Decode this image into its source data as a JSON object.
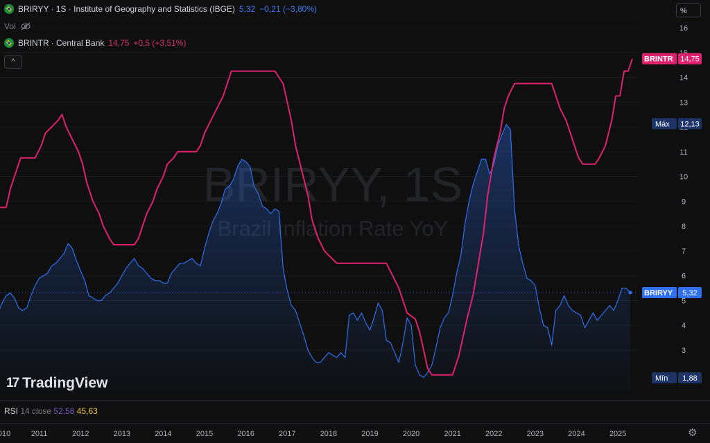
{
  "legend_main": {
    "symbol": "BRIRYY",
    "title": "· 1S · Institute of Geography and Statistics (IBGE)",
    "value": "5,32",
    "change": "−0,21 (−3,80%)"
  },
  "legend_vol": {
    "label": "Vol",
    "hidden_icon": "eye-off-icon"
  },
  "legend_second": {
    "symbol": "BRINTR",
    "source": "· Central Bank",
    "value": "14,75",
    "change": "+0,5 (+3,51%)"
  },
  "collapse_button": {
    "icon": "chevron-up-icon",
    "glyph": "^"
  },
  "scale_button": {
    "label": "%"
  },
  "watermark": {
    "symbol": "BRIRYY, 1S",
    "name": "Brazil Inflation Rate YoY"
  },
  "logo": {
    "text": "TradingView",
    "glyph": "17"
  },
  "rsi": {
    "label": "RSI",
    "params": "14 close",
    "value1": "52,58",
    "value2": "45,63"
  },
  "settings": {
    "icon": "gear-icon",
    "glyph": "⚙"
  },
  "colors": {
    "inflation": "#2f6ff0",
    "interest": "#e0216e",
    "background": "#0f0f0f",
    "max_min_badge": "#1e3466"
  },
  "chart_data": {
    "type": "line",
    "ylim": [
      1.7,
      16.5
    ],
    "y_ticks": [
      "16",
      "15",
      "14",
      "13",
      "12",
      "11",
      "10",
      "9",
      "8",
      "7",
      "6",
      "5",
      "4",
      "3"
    ],
    "x_ticks": [
      "010",
      "2011",
      "2012",
      "2013",
      "2014",
      "2015",
      "2016",
      "2017",
      "2018",
      "2019",
      "2020",
      "2021",
      "2022",
      "2023",
      "2024",
      "2025"
    ],
    "xlim": [
      2010.0,
      2025.6
    ],
    "series": [
      {
        "name": "BRIRYY",
        "color": "#2f6ff0",
        "points": [
          [
            2010.0,
            4.5
          ],
          [
            2010.1,
            4.9
          ],
          [
            2010.2,
            5.2
          ],
          [
            2010.3,
            5.3
          ],
          [
            2010.4,
            5.1
          ],
          [
            2010.5,
            4.7
          ],
          [
            2010.6,
            4.6
          ],
          [
            2010.7,
            4.7
          ],
          [
            2010.8,
            5.2
          ],
          [
            2010.9,
            5.6
          ],
          [
            2011.0,
            5.9
          ],
          [
            2011.1,
            6.0
          ],
          [
            2011.2,
            6.1
          ],
          [
            2011.3,
            6.4
          ],
          [
            2011.4,
            6.5
          ],
          [
            2011.5,
            6.7
          ],
          [
            2011.6,
            6.9
          ],
          [
            2011.7,
            7.3
          ],
          [
            2011.8,
            7.1
          ],
          [
            2011.9,
            6.6
          ],
          [
            2012.0,
            6.2
          ],
          [
            2012.1,
            5.8
          ],
          [
            2012.2,
            5.2
          ],
          [
            2012.3,
            5.1
          ],
          [
            2012.4,
            5.0
          ],
          [
            2012.5,
            5.0
          ],
          [
            2012.6,
            5.2
          ],
          [
            2012.7,
            5.3
          ],
          [
            2012.8,
            5.5
          ],
          [
            2012.9,
            5.7
          ],
          [
            2013.0,
            6.0
          ],
          [
            2013.1,
            6.3
          ],
          [
            2013.2,
            6.5
          ],
          [
            2013.3,
            6.7
          ],
          [
            2013.4,
            6.4
          ],
          [
            2013.5,
            6.3
          ],
          [
            2013.6,
            6.1
          ],
          [
            2013.7,
            5.9
          ],
          [
            2013.8,
            5.8
          ],
          [
            2013.9,
            5.8
          ],
          [
            2014.0,
            5.7
          ],
          [
            2014.1,
            5.7
          ],
          [
            2014.2,
            6.1
          ],
          [
            2014.3,
            6.3
          ],
          [
            2014.4,
            6.5
          ],
          [
            2014.5,
            6.5
          ],
          [
            2014.6,
            6.6
          ],
          [
            2014.7,
            6.7
          ],
          [
            2014.8,
            6.5
          ],
          [
            2014.9,
            6.4
          ],
          [
            2015.0,
            7.1
          ],
          [
            2015.1,
            7.7
          ],
          [
            2015.2,
            8.2
          ],
          [
            2015.3,
            8.5
          ],
          [
            2015.4,
            8.9
          ],
          [
            2015.5,
            9.5
          ],
          [
            2015.6,
            9.6
          ],
          [
            2015.7,
            9.9
          ],
          [
            2015.8,
            10.4
          ],
          [
            2015.9,
            10.7
          ],
          [
            2016.0,
            10.6
          ],
          [
            2016.1,
            10.4
          ],
          [
            2016.2,
            9.6
          ],
          [
            2016.3,
            9.3
          ],
          [
            2016.4,
            8.8
          ],
          [
            2016.5,
            8.7
          ],
          [
            2016.6,
            8.5
          ],
          [
            2016.7,
            8.7
          ],
          [
            2016.8,
            8.6
          ],
          [
            2016.9,
            6.3
          ],
          [
            2017.0,
            5.4
          ],
          [
            2017.1,
            4.8
          ],
          [
            2017.2,
            4.6
          ],
          [
            2017.3,
            4.1
          ],
          [
            2017.4,
            3.6
          ],
          [
            2017.5,
            3.0
          ],
          [
            2017.6,
            2.7
          ],
          [
            2017.7,
            2.5
          ],
          [
            2017.8,
            2.5
          ],
          [
            2017.9,
            2.7
          ],
          [
            2018.0,
            2.9
          ],
          [
            2018.1,
            2.8
          ],
          [
            2018.2,
            2.7
          ],
          [
            2018.3,
            2.9
          ],
          [
            2018.4,
            2.7
          ],
          [
            2018.5,
            4.4
          ],
          [
            2018.6,
            4.5
          ],
          [
            2018.7,
            4.2
          ],
          [
            2018.8,
            4.5
          ],
          [
            2018.9,
            4.1
          ],
          [
            2019.0,
            3.8
          ],
          [
            2019.1,
            4.3
          ],
          [
            2019.2,
            4.9
          ],
          [
            2019.3,
            4.6
          ],
          [
            2019.4,
            3.4
          ],
          [
            2019.5,
            3.3
          ],
          [
            2019.6,
            2.9
          ],
          [
            2019.7,
            2.5
          ],
          [
            2019.8,
            3.3
          ],
          [
            2019.9,
            4.3
          ],
          [
            2020.0,
            4.0
          ],
          [
            2020.1,
            2.4
          ],
          [
            2020.2,
            2.0
          ],
          [
            2020.3,
            1.9
          ],
          [
            2020.4,
            2.1
          ],
          [
            2020.5,
            2.4
          ],
          [
            2020.6,
            3.1
          ],
          [
            2020.7,
            3.9
          ],
          [
            2020.8,
            4.3
          ],
          [
            2020.9,
            4.5
          ],
          [
            2021.0,
            5.2
          ],
          [
            2021.1,
            6.1
          ],
          [
            2021.2,
            6.8
          ],
          [
            2021.3,
            8.1
          ],
          [
            2021.4,
            9.0
          ],
          [
            2021.5,
            9.7
          ],
          [
            2021.6,
            10.2
          ],
          [
            2021.7,
            10.7
          ],
          [
            2021.8,
            10.7
          ],
          [
            2021.9,
            10.1
          ],
          [
            2022.0,
            10.5
          ],
          [
            2022.1,
            11.3
          ],
          [
            2022.2,
            11.7
          ],
          [
            2022.3,
            12.1
          ],
          [
            2022.4,
            11.9
          ],
          [
            2022.5,
            8.7
          ],
          [
            2022.6,
            7.2
          ],
          [
            2022.7,
            6.5
          ],
          [
            2022.8,
            5.9
          ],
          [
            2022.9,
            5.8
          ],
          [
            2023.0,
            5.6
          ],
          [
            2023.1,
            4.7
          ],
          [
            2023.2,
            4.0
          ],
          [
            2023.3,
            3.9
          ],
          [
            2023.4,
            3.2
          ],
          [
            2023.5,
            4.6
          ],
          [
            2023.6,
            4.8
          ],
          [
            2023.7,
            5.2
          ],
          [
            2023.8,
            4.8
          ],
          [
            2023.9,
            4.6
          ],
          [
            2024.0,
            4.5
          ],
          [
            2024.1,
            4.4
          ],
          [
            2024.2,
            3.9
          ],
          [
            2024.3,
            4.2
          ],
          [
            2024.4,
            4.5
          ],
          [
            2024.5,
            4.2
          ],
          [
            2024.6,
            4.4
          ],
          [
            2024.7,
            4.6
          ],
          [
            2024.8,
            4.8
          ],
          [
            2024.9,
            4.6
          ],
          [
            2025.0,
            5.0
          ],
          [
            2025.1,
            5.5
          ],
          [
            2025.2,
            5.5
          ],
          [
            2025.3,
            5.32
          ]
        ]
      },
      {
        "name": "BRINTR",
        "color": "#e0216e",
        "points": [
          [
            2010.0,
            8.75
          ],
          [
            2010.2,
            8.75
          ],
          [
            2010.3,
            9.5
          ],
          [
            2010.45,
            10.25
          ],
          [
            2010.55,
            10.75
          ],
          [
            2010.9,
            10.75
          ],
          [
            2011.05,
            11.25
          ],
          [
            2011.15,
            11.75
          ],
          [
            2011.3,
            12.0
          ],
          [
            2011.45,
            12.25
          ],
          [
            2011.55,
            12.5
          ],
          [
            2011.65,
            12.0
          ],
          [
            2011.8,
            11.5
          ],
          [
            2011.95,
            11.0
          ],
          [
            2012.05,
            10.5
          ],
          [
            2012.15,
            9.75
          ],
          [
            2012.3,
            9.0
          ],
          [
            2012.45,
            8.5
          ],
          [
            2012.55,
            8.0
          ],
          [
            2012.7,
            7.5
          ],
          [
            2012.8,
            7.25
          ],
          [
            2013.3,
            7.25
          ],
          [
            2013.4,
            7.5
          ],
          [
            2013.5,
            8.0
          ],
          [
            2013.6,
            8.5
          ],
          [
            2013.75,
            9.0
          ],
          [
            2013.85,
            9.5
          ],
          [
            2014.0,
            10.0
          ],
          [
            2014.1,
            10.5
          ],
          [
            2014.25,
            10.75
          ],
          [
            2014.35,
            11.0
          ],
          [
            2014.8,
            11.0
          ],
          [
            2014.9,
            11.25
          ],
          [
            2015.0,
            11.75
          ],
          [
            2015.15,
            12.25
          ],
          [
            2015.3,
            12.75
          ],
          [
            2015.45,
            13.25
          ],
          [
            2015.55,
            13.75
          ],
          [
            2015.65,
            14.25
          ],
          [
            2016.7,
            14.25
          ],
          [
            2016.8,
            14.0
          ],
          [
            2016.9,
            13.75
          ],
          [
            2017.0,
            13.0
          ],
          [
            2017.1,
            12.25
          ],
          [
            2017.2,
            11.25
          ],
          [
            2017.35,
            10.25
          ],
          [
            2017.5,
            9.25
          ],
          [
            2017.6,
            8.25
          ],
          [
            2017.75,
            7.5
          ],
          [
            2017.9,
            7.0
          ],
          [
            2018.05,
            6.75
          ],
          [
            2018.2,
            6.5
          ],
          [
            2019.4,
            6.5
          ],
          [
            2019.55,
            6.0
          ],
          [
            2019.7,
            5.5
          ],
          [
            2019.8,
            5.0
          ],
          [
            2019.9,
            4.5
          ],
          [
            2020.1,
            4.25
          ],
          [
            2020.2,
            3.75
          ],
          [
            2020.3,
            3.0
          ],
          [
            2020.4,
            2.25
          ],
          [
            2020.5,
            2.0
          ],
          [
            2021.0,
            2.0
          ],
          [
            2021.15,
            2.75
          ],
          [
            2021.25,
            3.5
          ],
          [
            2021.35,
            4.25
          ],
          [
            2021.5,
            5.25
          ],
          [
            2021.6,
            6.25
          ],
          [
            2021.75,
            7.75
          ],
          [
            2021.85,
            9.25
          ],
          [
            2022.0,
            10.75
          ],
          [
            2022.15,
            11.75
          ],
          [
            2022.25,
            12.75
          ],
          [
            2022.35,
            13.25
          ],
          [
            2022.5,
            13.75
          ],
          [
            2023.4,
            13.75
          ],
          [
            2023.5,
            13.25
          ],
          [
            2023.6,
            12.75
          ],
          [
            2023.75,
            12.25
          ],
          [
            2023.85,
            11.75
          ],
          [
            2023.95,
            11.25
          ],
          [
            2024.05,
            10.75
          ],
          [
            2024.15,
            10.5
          ],
          [
            2024.45,
            10.5
          ],
          [
            2024.55,
            10.75
          ],
          [
            2024.7,
            11.25
          ],
          [
            2024.85,
            12.25
          ],
          [
            2024.95,
            13.25
          ],
          [
            2025.05,
            13.25
          ],
          [
            2025.15,
            14.25
          ],
          [
            2025.25,
            14.25
          ],
          [
            2025.35,
            14.75
          ]
        ]
      }
    ],
    "price_labels": [
      {
        "label": "BRINTR",
        "value": "14,75",
        "y": 14.75,
        "color": "#e0216e"
      },
      {
        "label": "Máx",
        "value": "12,13",
        "y": 12.13,
        "color": "#1e3466"
      },
      {
        "label": "BRIRYY",
        "value": "5,32",
        "y": 5.32,
        "color": "#2f6ff0"
      },
      {
        "label": "Mín",
        "value": "1,88",
        "y": 1.88,
        "color": "#1e3466"
      }
    ]
  }
}
